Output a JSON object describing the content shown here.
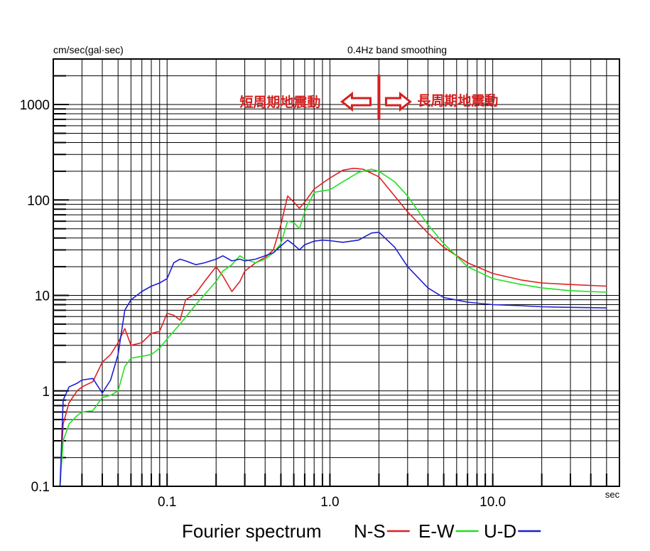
{
  "chart_data": {
    "type": "line",
    "title": "0.4Hz band smoothing",
    "ylabel": "cm/sec(gal·sec)",
    "xlabel": "sec",
    "xscale": "log",
    "yscale": "log",
    "xlim": [
      0.02,
      60
    ],
    "ylim": [
      0.1,
      3000
    ],
    "grid": true,
    "x_ticks": [
      "0.1",
      "1.0",
      "10.0"
    ],
    "y_ticks": [
      "0.1",
      "1",
      "10",
      "100",
      "1000"
    ],
    "legend": {
      "title": "Fourier spectrum",
      "placement": "bottom",
      "entries": [
        "N-S",
        "E-W",
        "U-D"
      ]
    },
    "annotation": {
      "boundary_x": 2.0,
      "left_label": "短周期地震動",
      "right_label": "長周期地震動"
    },
    "series": [
      {
        "name": "N-S",
        "color": "#e02020",
        "points": [
          [
            0.022,
            0.1
          ],
          [
            0.023,
            0.45
          ],
          [
            0.025,
            0.75
          ],
          [
            0.028,
            1.0
          ],
          [
            0.03,
            1.1
          ],
          [
            0.035,
            1.25
          ],
          [
            0.04,
            2.0
          ],
          [
            0.045,
            2.4
          ],
          [
            0.05,
            3.2
          ],
          [
            0.055,
            4.5
          ],
          [
            0.06,
            3.0
          ],
          [
            0.07,
            3.2
          ],
          [
            0.08,
            4.0
          ],
          [
            0.09,
            4.2
          ],
          [
            0.1,
            6.5
          ],
          [
            0.11,
            6.2
          ],
          [
            0.12,
            5.5
          ],
          [
            0.13,
            9.0
          ],
          [
            0.15,
            10.5
          ],
          [
            0.17,
            14
          ],
          [
            0.2,
            20
          ],
          [
            0.22,
            16
          ],
          [
            0.25,
            11
          ],
          [
            0.28,
            14
          ],
          [
            0.3,
            18
          ],
          [
            0.35,
            22
          ],
          [
            0.4,
            25
          ],
          [
            0.45,
            30
          ],
          [
            0.5,
            55
          ],
          [
            0.55,
            110
          ],
          [
            0.6,
            95
          ],
          [
            0.65,
            82
          ],
          [
            0.7,
            95
          ],
          [
            0.8,
            130
          ],
          [
            0.9,
            150
          ],
          [
            1.0,
            170
          ],
          [
            1.2,
            205
          ],
          [
            1.4,
            215
          ],
          [
            1.6,
            210
          ],
          [
            2.0,
            175
          ],
          [
            2.5,
            110
          ],
          [
            3.0,
            75
          ],
          [
            4.0,
            45
          ],
          [
            5.0,
            32
          ],
          [
            7.0,
            22
          ],
          [
            10.0,
            17
          ],
          [
            15.0,
            14.5
          ],
          [
            20.0,
            13.5
          ],
          [
            30.0,
            13
          ],
          [
            50.0,
            12.5
          ]
        ]
      },
      {
        "name": "E-W",
        "color": "#22e022",
        "points": [
          [
            0.022,
            0.1
          ],
          [
            0.023,
            0.3
          ],
          [
            0.025,
            0.45
          ],
          [
            0.028,
            0.55
          ],
          [
            0.03,
            0.6
          ],
          [
            0.035,
            0.62
          ],
          [
            0.04,
            0.85
          ],
          [
            0.045,
            0.9
          ],
          [
            0.05,
            1.0
          ],
          [
            0.055,
            1.8
          ],
          [
            0.06,
            2.2
          ],
          [
            0.07,
            2.3
          ],
          [
            0.08,
            2.4
          ],
          [
            0.09,
            2.8
          ],
          [
            0.1,
            3.5
          ],
          [
            0.12,
            5.0
          ],
          [
            0.15,
            8.0
          ],
          [
            0.2,
            14
          ],
          [
            0.22,
            18
          ],
          [
            0.25,
            21
          ],
          [
            0.28,
            26
          ],
          [
            0.3,
            24
          ],
          [
            0.35,
            22
          ],
          [
            0.4,
            24
          ],
          [
            0.45,
            28
          ],
          [
            0.5,
            35
          ],
          [
            0.55,
            60
          ],
          [
            0.6,
            58
          ],
          [
            0.65,
            50
          ],
          [
            0.7,
            75
          ],
          [
            0.8,
            120
          ],
          [
            0.9,
            125
          ],
          [
            1.0,
            128
          ],
          [
            1.2,
            155
          ],
          [
            1.5,
            195
          ],
          [
            1.8,
            210
          ],
          [
            2.0,
            200
          ],
          [
            2.5,
            155
          ],
          [
            3.0,
            110
          ],
          [
            4.0,
            55
          ],
          [
            5.0,
            35
          ],
          [
            7.0,
            20
          ],
          [
            10.0,
            15
          ],
          [
            15.0,
            13
          ],
          [
            20.0,
            12
          ],
          [
            30.0,
            11.2
          ],
          [
            50.0,
            10.8
          ]
        ]
      },
      {
        "name": "U-D",
        "color": "#1e1ed2",
        "points": [
          [
            0.022,
            0.1
          ],
          [
            0.023,
            0.8
          ],
          [
            0.025,
            1.1
          ],
          [
            0.028,
            1.2
          ],
          [
            0.03,
            1.3
          ],
          [
            0.035,
            1.35
          ],
          [
            0.04,
            0.95
          ],
          [
            0.045,
            1.3
          ],
          [
            0.05,
            2.4
          ],
          [
            0.055,
            7.0
          ],
          [
            0.06,
            9.0
          ],
          [
            0.07,
            11
          ],
          [
            0.08,
            12.5
          ],
          [
            0.09,
            13.5
          ],
          [
            0.1,
            15
          ],
          [
            0.11,
            22
          ],
          [
            0.12,
            24
          ],
          [
            0.13,
            23
          ],
          [
            0.15,
            21
          ],
          [
            0.17,
            22
          ],
          [
            0.2,
            24
          ],
          [
            0.22,
            26
          ],
          [
            0.25,
            23
          ],
          [
            0.28,
            24
          ],
          [
            0.3,
            23
          ],
          [
            0.35,
            24
          ],
          [
            0.4,
            26
          ],
          [
            0.45,
            28
          ],
          [
            0.5,
            33
          ],
          [
            0.55,
            38
          ],
          [
            0.6,
            34
          ],
          [
            0.65,
            30
          ],
          [
            0.7,
            34
          ],
          [
            0.8,
            37
          ],
          [
            0.9,
            38
          ],
          [
            1.0,
            37.5
          ],
          [
            1.2,
            36
          ],
          [
            1.5,
            38
          ],
          [
            1.8,
            45
          ],
          [
            2.0,
            46
          ],
          [
            2.5,
            32
          ],
          [
            3.0,
            20
          ],
          [
            4.0,
            12
          ],
          [
            5.0,
            9.5
          ],
          [
            7.0,
            8.5
          ],
          [
            10.0,
            8
          ],
          [
            15.0,
            7.8
          ],
          [
            20.0,
            7.6
          ],
          [
            30.0,
            7.5
          ],
          [
            50.0,
            7.4
          ]
        ]
      }
    ]
  }
}
